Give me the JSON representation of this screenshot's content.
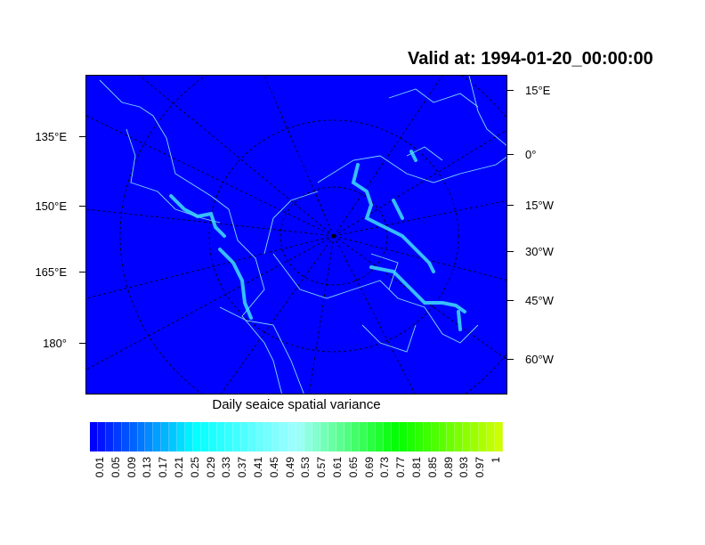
{
  "title": "Valid at: 1994-01-20_00:00:00",
  "map": {
    "projection": "polar stereographic (north)",
    "ocean_color": "#0000ff",
    "coastline_color": "#7fdfff",
    "left_labels": [
      "135°E",
      "150°E",
      "165°E",
      "180°"
    ],
    "right_labels": [
      "15°E",
      "0°",
      "15°W",
      "30°W",
      "45°W",
      "60°W"
    ]
  },
  "colorbar": {
    "title": "Daily seaice spatial variance",
    "labels": [
      "0.01",
      "0.05",
      "0.09",
      "0.13",
      "0.17",
      "0.21",
      "0.25",
      "0.29",
      "0.33",
      "0.37",
      "0.41",
      "0.45",
      "0.49",
      "0.53",
      "0.57",
      "0.61",
      "0.65",
      "0.69",
      "0.73",
      "0.77",
      "0.81",
      "0.85",
      "0.89",
      "0.93",
      "0.97",
      "1"
    ],
    "color_stops": [
      "#0000ff",
      "#00ffff",
      "#a0ffff",
      "#00ff00",
      "#ccff00"
    ]
  }
}
